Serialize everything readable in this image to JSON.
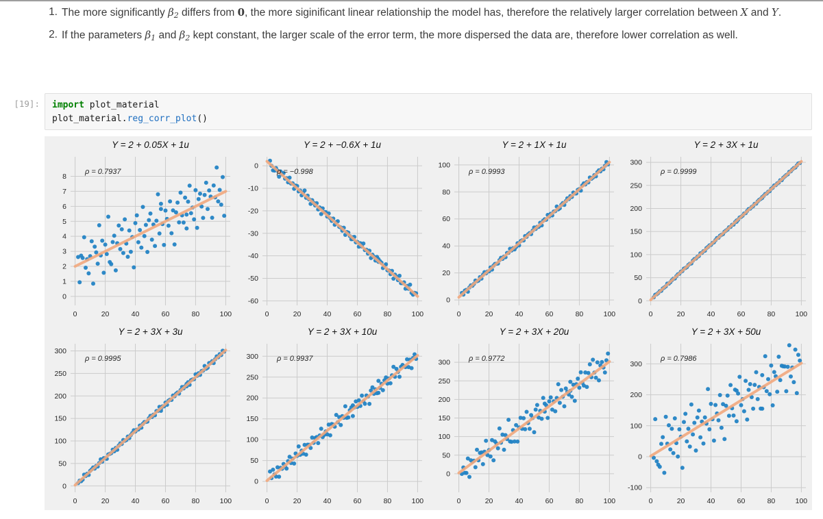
{
  "markdown": {
    "items": [
      {
        "number": "1.",
        "segments": [
          {
            "k": "t",
            "s": "The more significantly "
          },
          {
            "k": "m",
            "s": "β"
          },
          {
            "k": "sub",
            "s": "2"
          },
          {
            "k": "t",
            "s": " differs from "
          },
          {
            "k": "mb",
            "s": "0"
          },
          {
            "k": "t",
            "s": ", the more siginificant linear relationship the model has, therefore the relatively larger correlation between "
          },
          {
            "k": "m",
            "s": "X"
          },
          {
            "k": "t",
            "s": " and "
          },
          {
            "k": "m",
            "s": "Y"
          },
          {
            "k": "t",
            "s": "."
          }
        ]
      },
      {
        "number": "2.",
        "segments": [
          {
            "k": "t",
            "s": "If the parameters "
          },
          {
            "k": "m",
            "s": "β"
          },
          {
            "k": "sub",
            "s": "1"
          },
          {
            "k": "t",
            "s": " and "
          },
          {
            "k": "m",
            "s": "β"
          },
          {
            "k": "sub",
            "s": "2"
          },
          {
            "k": "t",
            "s": " kept constant, the larger scale of the error term, the more dispersed the data are, therefore lower correlation as well."
          }
        ]
      }
    ]
  },
  "code_cell": {
    "prompt": "[19]:",
    "lines": [
      [
        {
          "k": "kw",
          "s": "import"
        },
        {
          "k": "p",
          "s": " plot_material"
        }
      ],
      [
        {
          "k": "p",
          "s": "plot_material."
        },
        {
          "k": "fn",
          "s": "reg_corr_plot"
        },
        {
          "k": "p",
          "s": "()"
        }
      ]
    ]
  },
  "chart_data": {
    "type": "scatter",
    "style": {
      "figure_bg": "#f0f0f0",
      "grid_color": "#cbcbcb",
      "tick_color": "#262626",
      "title_color": "#111111",
      "point_color": "#2383c4",
      "line_color": "#f2a97e"
    },
    "xlabel": "",
    "ylabel": "",
    "xlim": [
      -3,
      103
    ],
    "xticks": [
      0,
      20,
      40,
      60,
      80,
      100
    ],
    "x_base": [
      2,
      3,
      5,
      6,
      7,
      8,
      9,
      11,
      12,
      13,
      14,
      15,
      16,
      17,
      18,
      19,
      20,
      21,
      22,
      23,
      24,
      25,
      26,
      27,
      28,
      29,
      30,
      31,
      32,
      33,
      34,
      35,
      36,
      38,
      39,
      40,
      41,
      42,
      43,
      44,
      45,
      46,
      47,
      48,
      49,
      50,
      51,
      52,
      53,
      54,
      55,
      56,
      57,
      58,
      59,
      60,
      61,
      62,
      63,
      64,
      65,
      66,
      67,
      68,
      69,
      70,
      71,
      72,
      73,
      74,
      75,
      76,
      77,
      78,
      79,
      80,
      81,
      82,
      83,
      84,
      85,
      86,
      87,
      88,
      90,
      91,
      92,
      93,
      94,
      95,
      96,
      97,
      98,
      99,
      4,
      10,
      37,
      57,
      74,
      89
    ],
    "u_base": [
      0.52,
      -1.21,
      0.31,
      1.64,
      -0.44,
      0.08,
      -0.92,
      1.12,
      -1.75,
      0.66,
      0.23,
      -0.57,
      1.94,
      -0.12,
      0.81,
      -1.38,
      0.45,
      -0.23,
      2.21,
      -0.86,
      -1.05,
      0.37,
      0.74,
      -1.62,
      0.14,
      1.27,
      -0.35,
      0.92,
      -0.71,
      1.48,
      -0.18,
      -1.11,
      0.59,
      0.05,
      -2.02,
      0.88,
      1.35,
      -0.49,
      0.27,
      -0.95,
      1.71,
      -0.28,
      0.41,
      -1.44,
      0.63,
      1.02,
      -0.77,
      0.19,
      -1.29,
      0.34,
      2.05,
      -0.61,
      0.97,
      -0.08,
      -1.52,
      0.72,
      0.11,
      -0.39,
      1.18,
      -0.99,
      0.48,
      -1.84,
      0.25,
      0.85,
      -0.52,
      1.41,
      -0.15,
      -0.68,
      0.93,
      -1.17,
      0.56,
      1.58,
      -0.31,
      0.02,
      -0.82,
      1.08,
      -1.48,
      0.38,
      0.69,
      -0.21,
      -1.02,
      0.46,
      1.22,
      -0.58,
      0.15,
      -1.31,
      0.79,
      -0.05,
      1.89,
      -0.42,
      0.29,
      -0.74,
      1.05,
      -1.58,
      0.51,
      0.18,
      -0.88,
      1.32,
      -0.25,
      0.61
    ],
    "subplots": [
      {
        "title": "Y = 2 + 0.05X + 1u",
        "rho_label": "ρ = 0.7937",
        "rho": 0.7937,
        "intercept": 2,
        "slope": 0.05,
        "noise_scale": 1,
        "u_rot": 0,
        "ylim": [
          -0.6,
          9.3
        ],
        "yticks": [
          0,
          1,
          2,
          3,
          4,
          5,
          6,
          7,
          8
        ]
      },
      {
        "title": "Y = 2 + −0.6X + 1u",
        "rho_label": "ρ = −0.998",
        "rho": -0.998,
        "intercept": 2,
        "slope": -0.6,
        "noise_scale": 1,
        "u_rot": 29,
        "ylim": [
          -62,
          4
        ],
        "yticks": [
          0,
          -10,
          -20,
          -30,
          -40,
          -50,
          -60
        ]
      },
      {
        "title": "Y = 2 + 1X + 1u",
        "rho_label": "ρ = 0.9993",
        "rho": 0.9993,
        "intercept": 2,
        "slope": 1,
        "noise_scale": 1,
        "u_rot": 58,
        "ylim": [
          -4,
          106
        ],
        "yticks": [
          0,
          20,
          40,
          60,
          80,
          100
        ]
      },
      {
        "title": "Y = 2 + 3X + 1u",
        "rho_label": "ρ = 0.9999",
        "rho": 0.9999,
        "intercept": 2,
        "slope": 3,
        "noise_scale": 1,
        "u_rot": 11,
        "ylim": [
          -10,
          312
        ],
        "yticks": [
          0,
          50,
          100,
          150,
          200,
          250,
          300
        ]
      },
      {
        "title": "Y = 2 + 3X + 3u",
        "rho_label": "ρ = 0.9995",
        "rho": 0.9995,
        "intercept": 2,
        "slope": 3,
        "noise_scale": 3,
        "u_rot": 37,
        "ylim": [
          -14,
          316
        ],
        "yticks": [
          0,
          50,
          100,
          150,
          200,
          250,
          300
        ]
      },
      {
        "title": "Y = 2 + 3X + 10u",
        "rho_label": "ρ = 0.9937",
        "rho": 0.9937,
        "intercept": 2,
        "slope": 3,
        "noise_scale": 10,
        "u_rot": 71,
        "ylim": [
          -26,
          330
        ],
        "yticks": [
          0,
          50,
          100,
          150,
          200,
          250,
          300
        ]
      },
      {
        "title": "Y = 2 + 3X + 20u",
        "rho_label": "ρ = 0.9772",
        "rho": 0.9772,
        "intercept": 2,
        "slope": 3,
        "noise_scale": 20,
        "u_rot": 89,
        "ylim": [
          -50,
          350
        ],
        "yticks": [
          0,
          50,
          100,
          150,
          200,
          250,
          300
        ]
      },
      {
        "title": "Y = 2 + 3X + 50u",
        "rho_label": "ρ = 0.7986",
        "rho": 0.7986,
        "intercept": 2,
        "slope": 3,
        "noise_scale": 50,
        "u_rot": 17,
        "ylim": [
          -115,
          365
        ],
        "yticks": [
          -100,
          0,
          100,
          200,
          300
        ]
      }
    ]
  }
}
